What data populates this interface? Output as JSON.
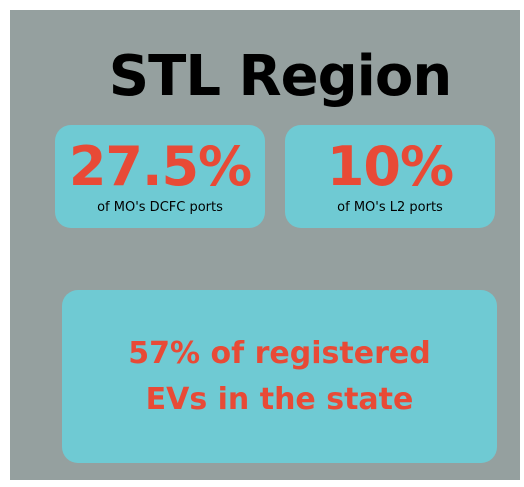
{
  "title": "STL Region",
  "stats": [
    {
      "value": "27.5%",
      "caption": "of MO's DCFC ports"
    },
    {
      "value": "10%",
      "caption": "of MO's L2 ports"
    }
  ],
  "highlight": {
    "lines": [
      "57% of registered",
      "EVs in the state"
    ]
  }
}
